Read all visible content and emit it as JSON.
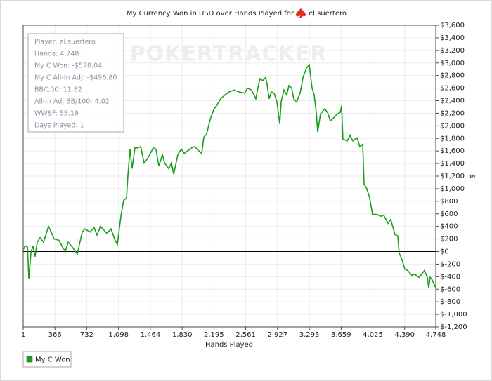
{
  "chart_data": {
    "type": "line",
    "title": "My Currency Won in USD over Hands Played for",
    "title_player": "el.suertero",
    "watermark": "POKERTRACKER",
    "x_label": "Hands Played",
    "y_label": "$",
    "annotations": [
      "Player: el.suertero",
      "Hands: 4,748",
      "My C Won: -$578.04",
      "My C All-In Adj: -$496.80",
      "BB/100: 11.82",
      "All-In Adj BB/100: 4.02",
      "WWSF: 55.19",
      "Days Played: 1"
    ],
    "xlim": [
      1,
      4748
    ],
    "xticks": [
      1,
      366,
      732,
      {
        "value": 1098,
        "label": "1,098"
      },
      {
        "value": 1464,
        "label": "1,464"
      },
      {
        "value": 1830,
        "label": "1,830"
      },
      {
        "value": 2195,
        "label": "2,195"
      },
      {
        "value": 2561,
        "label": "2,561"
      },
      {
        "value": 2927,
        "label": "2,927"
      },
      {
        "value": 3293,
        "label": "3,293"
      },
      {
        "value": 3659,
        "label": "3,659"
      },
      {
        "value": 4025,
        "label": "4,025"
      },
      {
        "value": 4390,
        "label": "4,390"
      },
      {
        "value": 4748,
        "label": "4,748"
      }
    ],
    "ylim": [
      -1200,
      3600
    ],
    "yticks": [
      {
        "value": -1200,
        "label": "$-1,200"
      },
      {
        "value": -1000,
        "label": "$-1,000"
      },
      {
        "value": -800,
        "label": "$-800"
      },
      {
        "value": -600,
        "label": "$-600"
      },
      {
        "value": -400,
        "label": "$-400"
      },
      {
        "value": -200,
        "label": "$-200"
      },
      {
        "value": 0,
        "label": "$0"
      },
      {
        "value": 200,
        "label": "$200"
      },
      {
        "value": 400,
        "label": "$400"
      },
      {
        "value": 600,
        "label": "$600"
      },
      {
        "value": 800,
        "label": "$800"
      },
      {
        "value": 1000,
        "label": "$1,000"
      },
      {
        "value": 1200,
        "label": "$1,200"
      },
      {
        "value": 1400,
        "label": "$1,400"
      },
      {
        "value": 1600,
        "label": "$1,600"
      },
      {
        "value": 1800,
        "label": "$1,800"
      },
      {
        "value": 2000,
        "label": "$2,000"
      },
      {
        "value": 2200,
        "label": "$2,200"
      },
      {
        "value": 2400,
        "label": "$2,400"
      },
      {
        "value": 2600,
        "label": "$2,600"
      },
      {
        "value": 2800,
        "label": "$2,800"
      },
      {
        "value": 3000,
        "label": "$3,000"
      },
      {
        "value": 3200,
        "label": "$3,200"
      },
      {
        "value": 3400,
        "label": "$3,400"
      },
      {
        "value": 3600,
        "label": "$3,600"
      }
    ],
    "grid": true,
    "legend": "bottom-left",
    "x": [
      1,
      25,
      50,
      66,
      90,
      114,
      138,
      163,
      195,
      235,
      268,
      292,
      324,
      357,
      413,
      446,
      486,
      519,
      567,
      624,
      680,
      713,
      769,
      818,
      850,
      890,
      963,
      1012,
      1052,
      1085,
      1125,
      1157,
      1190,
      1206,
      1230,
      1254,
      1287,
      1319,
      1352,
      1392,
      1416,
      1449,
      1497,
      1529,
      1562,
      1602,
      1627,
      1675,
      1707,
      1732,
      1780,
      1820,
      1853,
      1901,
      1942,
      1974,
      2015,
      2055,
      2079,
      2112,
      2152,
      2193,
      2225,
      2273,
      2322,
      2370,
      2427,
      2484,
      2548,
      2581,
      2629,
      2678,
      2702,
      2726,
      2759,
      2791,
      2807,
      2831,
      2856,
      2888,
      2920,
      2953,
      2969,
      3001,
      3034,
      3058,
      3090,
      3114,
      3147,
      3187,
      3220,
      3260,
      3292,
      3325,
      3349,
      3373,
      3389,
      3422,
      3470,
      3503,
      3535,
      3567,
      3616,
      3648,
      3664,
      3680,
      3729,
      3761,
      3794,
      3842,
      3874,
      3907,
      3923,
      3955,
      3988,
      4020,
      4069,
      4117,
      4149,
      4198,
      4230,
      4279,
      4311,
      4327,
      4360,
      4392,
      4424,
      4473,
      4505,
      4554,
      4586,
      4618,
      4651,
      4667,
      4683,
      4707,
      4748
    ],
    "series": [
      {
        "name": "My C Won",
        "color": "#1a9e1a",
        "values": [
          30,
          90,
          70,
          -430,
          -20,
          90,
          -80,
          150,
          220,
          150,
          290,
          400,
          310,
          200,
          180,
          90,
          0,
          150,
          70,
          -40,
          310,
          360,
          310,
          380,
          260,
          400,
          290,
          360,
          200,
          110,
          560,
          815,
          850,
          1210,
          1630,
          1320,
          1650,
          1650,
          1670,
          1410,
          1450,
          1520,
          1650,
          1630,
          1360,
          1540,
          1410,
          1320,
          1410,
          1230,
          1540,
          1630,
          1560,
          1610,
          1650,
          1670,
          1610,
          1560,
          1820,
          1870,
          2100,
          2260,
          2320,
          2430,
          2490,
          2540,
          2570,
          2540,
          2520,
          2600,
          2570,
          2430,
          2610,
          2750,
          2720,
          2770,
          2660,
          2430,
          2540,
          2520,
          2380,
          2030,
          2380,
          2570,
          2490,
          2640,
          2600,
          2430,
          2380,
          2520,
          2770,
          2920,
          2970,
          2600,
          2490,
          2210,
          1900,
          2190,
          2270,
          2210,
          2080,
          2120,
          2190,
          2210,
          2320,
          1790,
          1760,
          1850,
          1760,
          1810,
          1670,
          1710,
          1070,
          1000,
          850,
          590,
          590,
          560,
          580,
          450,
          510,
          270,
          250,
          -20,
          -130,
          -280,
          -300,
          -380,
          -360,
          -410,
          -360,
          -300,
          -410,
          -580,
          -410,
          -450,
          -578.04
        ]
      }
    ]
  }
}
